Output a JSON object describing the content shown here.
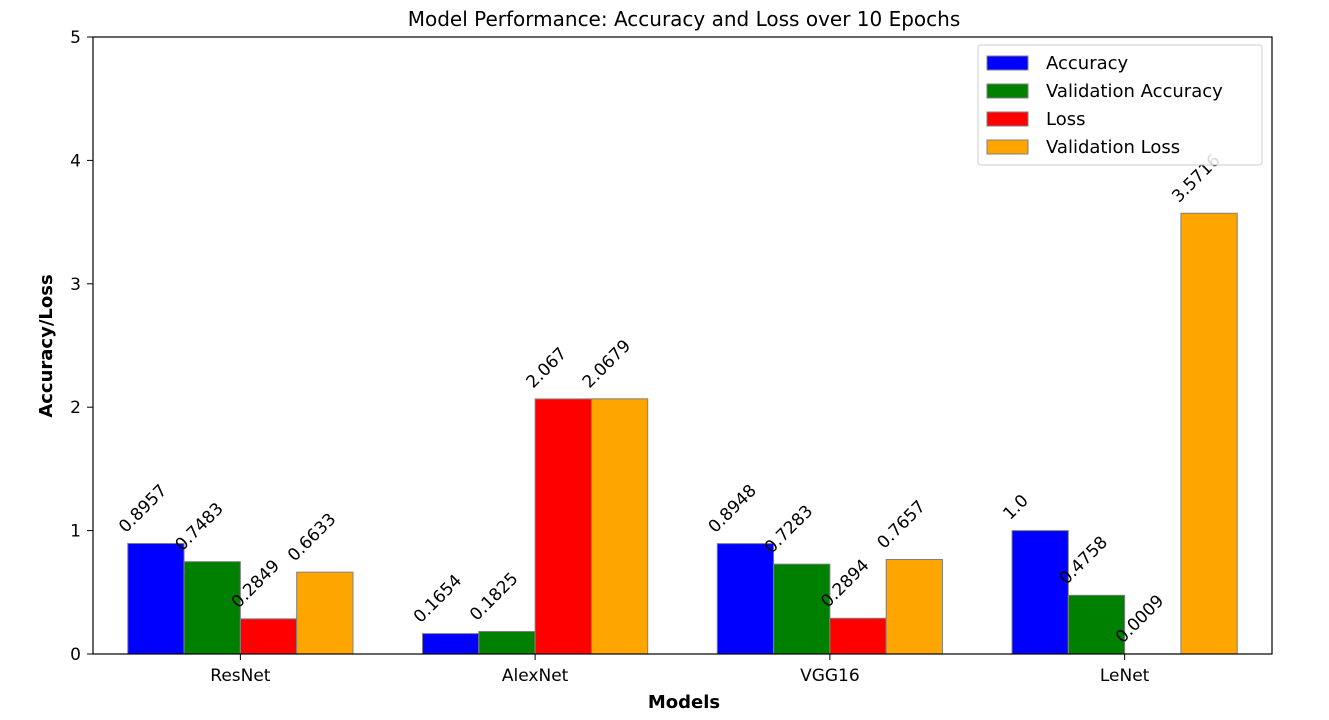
{
  "chart_data": {
    "type": "bar",
    "title": "Model Performance: Accuracy and Loss over 10 Epochs",
    "xlabel": "Models",
    "ylabel": "Accuracy/Loss",
    "categories": [
      "ResNet",
      "AlexNet",
      "VGG16",
      "LeNet"
    ],
    "series": [
      {
        "name": "Accuracy",
        "color": "#0000ff",
        "values": [
          0.8957,
          0.1654,
          0.8948,
          1.0
        ],
        "labels": [
          "0.8957",
          "0.1654",
          "0.8948",
          "1.0"
        ]
      },
      {
        "name": "Validation Accuracy",
        "color": "#008000",
        "values": [
          0.7483,
          0.1825,
          0.7283,
          0.4758
        ],
        "labels": [
          "0.7483",
          "0.1825",
          "0.7283",
          "0.4758"
        ]
      },
      {
        "name": "Loss",
        "color": "#ff0000",
        "values": [
          0.2849,
          2.067,
          0.2894,
          0.0009
        ],
        "labels": [
          "0.2849",
          "2.067",
          "0.2894",
          "0.0009"
        ]
      },
      {
        "name": "Validation Loss",
        "color": "#ffa500",
        "values": [
          0.6633,
          2.0679,
          0.7657,
          3.5716
        ],
        "labels": [
          "0.6633",
          "2.0679",
          "0.7657",
          "3.5716"
        ]
      }
    ],
    "ylim": [
      0,
      5
    ],
    "yticks": [
      "0",
      "1",
      "2",
      "3",
      "4",
      "5"
    ],
    "grid": false,
    "legend_position": "top-right",
    "bar_edge_color": "#808080"
  }
}
